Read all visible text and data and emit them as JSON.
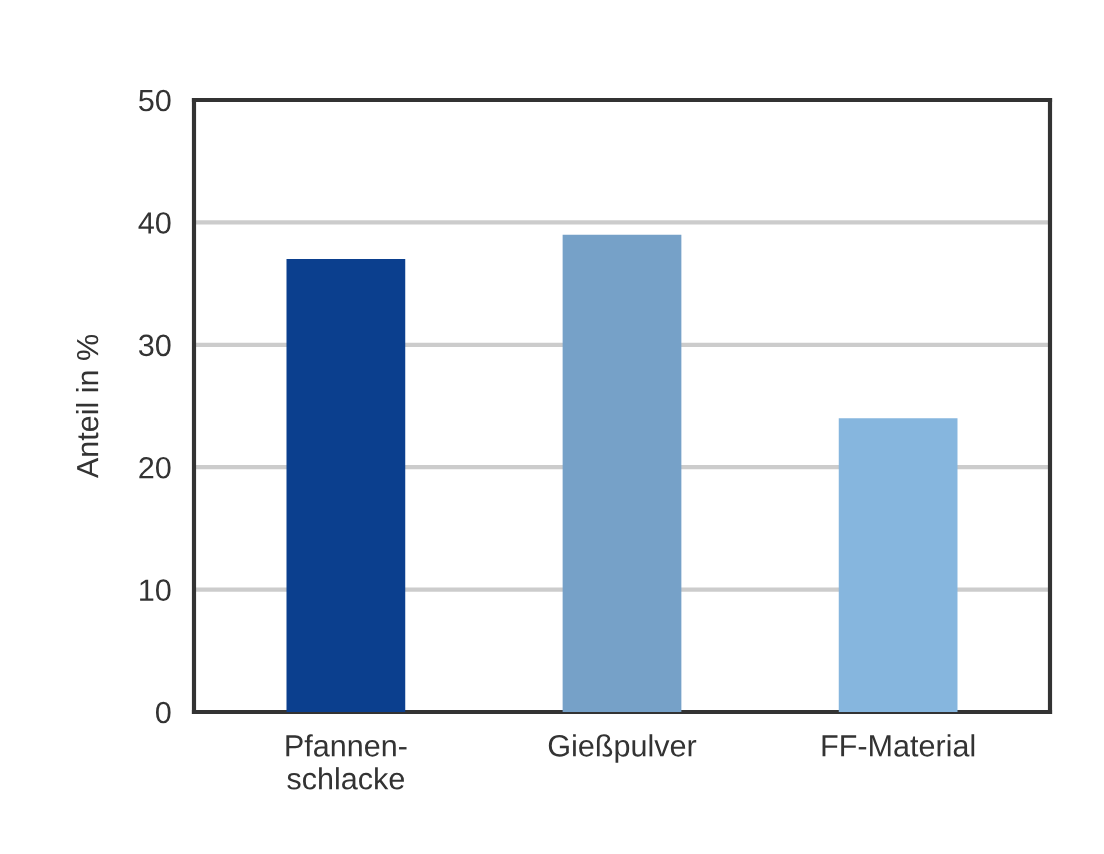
{
  "chart_data": {
    "type": "bar",
    "ylabel": "Anteil in %",
    "categories": [
      "Pfannen-\nschlacke",
      "Gießpulver",
      "FF-Material"
    ],
    "values": [
      37,
      39,
      24
    ],
    "colors": [
      "#0b3f8e",
      "#76a1c8",
      "#86b6de"
    ],
    "ylim": [
      0,
      50
    ],
    "yticks": [
      0,
      10,
      20,
      30,
      40,
      50
    ],
    "grid": "y",
    "legend": false
  }
}
